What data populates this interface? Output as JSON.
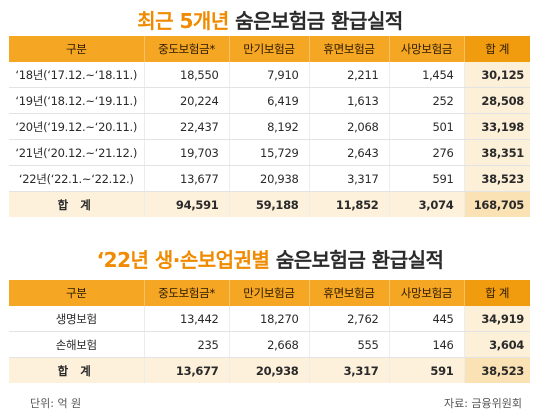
{
  "title1": {
    "accent": "최근 5개년",
    "rest": " 숨은보험금 환급실적"
  },
  "title2": {
    "accent": "‘22년 생·손보업권별",
    "rest": " 숨은보험금 환급실적"
  },
  "table1": {
    "headers": [
      "구분",
      "중도보험금*",
      "만기보험금",
      "휴면보험금",
      "사망보험금",
      "합 계"
    ],
    "rows": [
      [
        "‘18년(‘17.12.~‘18.11.)",
        "18,550",
        "7,910",
        "2,211",
        "1,454",
        "30,125"
      ],
      [
        "‘19년(‘18.12.~‘19.11.)",
        "20,224",
        "6,419",
        "1,613",
        "252",
        "28,508"
      ],
      [
        "‘20년(‘19.12.~‘20.11.)",
        "22,437",
        "8,192",
        "2,068",
        "501",
        "33,198"
      ],
      [
        "‘21년(‘20.12.~‘21.12.)",
        "19,703",
        "15,729",
        "2,643",
        "276",
        "38,351"
      ],
      [
        "‘22년(‘22.1.~‘22.12.)",
        "13,677",
        "20,938",
        "3,317",
        "591",
        "38,523"
      ]
    ],
    "total": [
      "합 계",
      "94,591",
      "59,188",
      "11,852",
      "3,074",
      "168,705"
    ]
  },
  "table2": {
    "headers": [
      "구분",
      "중도보험금*",
      "만기보험금",
      "휴면보험금",
      "사망보험금",
      "합 계"
    ],
    "rows": [
      [
        "생명보험",
        "13,442",
        "18,270",
        "2,762",
        "445",
        "34,919"
      ],
      [
        "손해보험",
        "235",
        "2,668",
        "555",
        "146",
        "3,604"
      ]
    ],
    "total": [
      "합 계",
      "13,677",
      "20,938",
      "3,317",
      "591",
      "38,523"
    ]
  },
  "footer": {
    "unit": "단위: 억 원",
    "source": "자료: 금융위원회"
  }
}
